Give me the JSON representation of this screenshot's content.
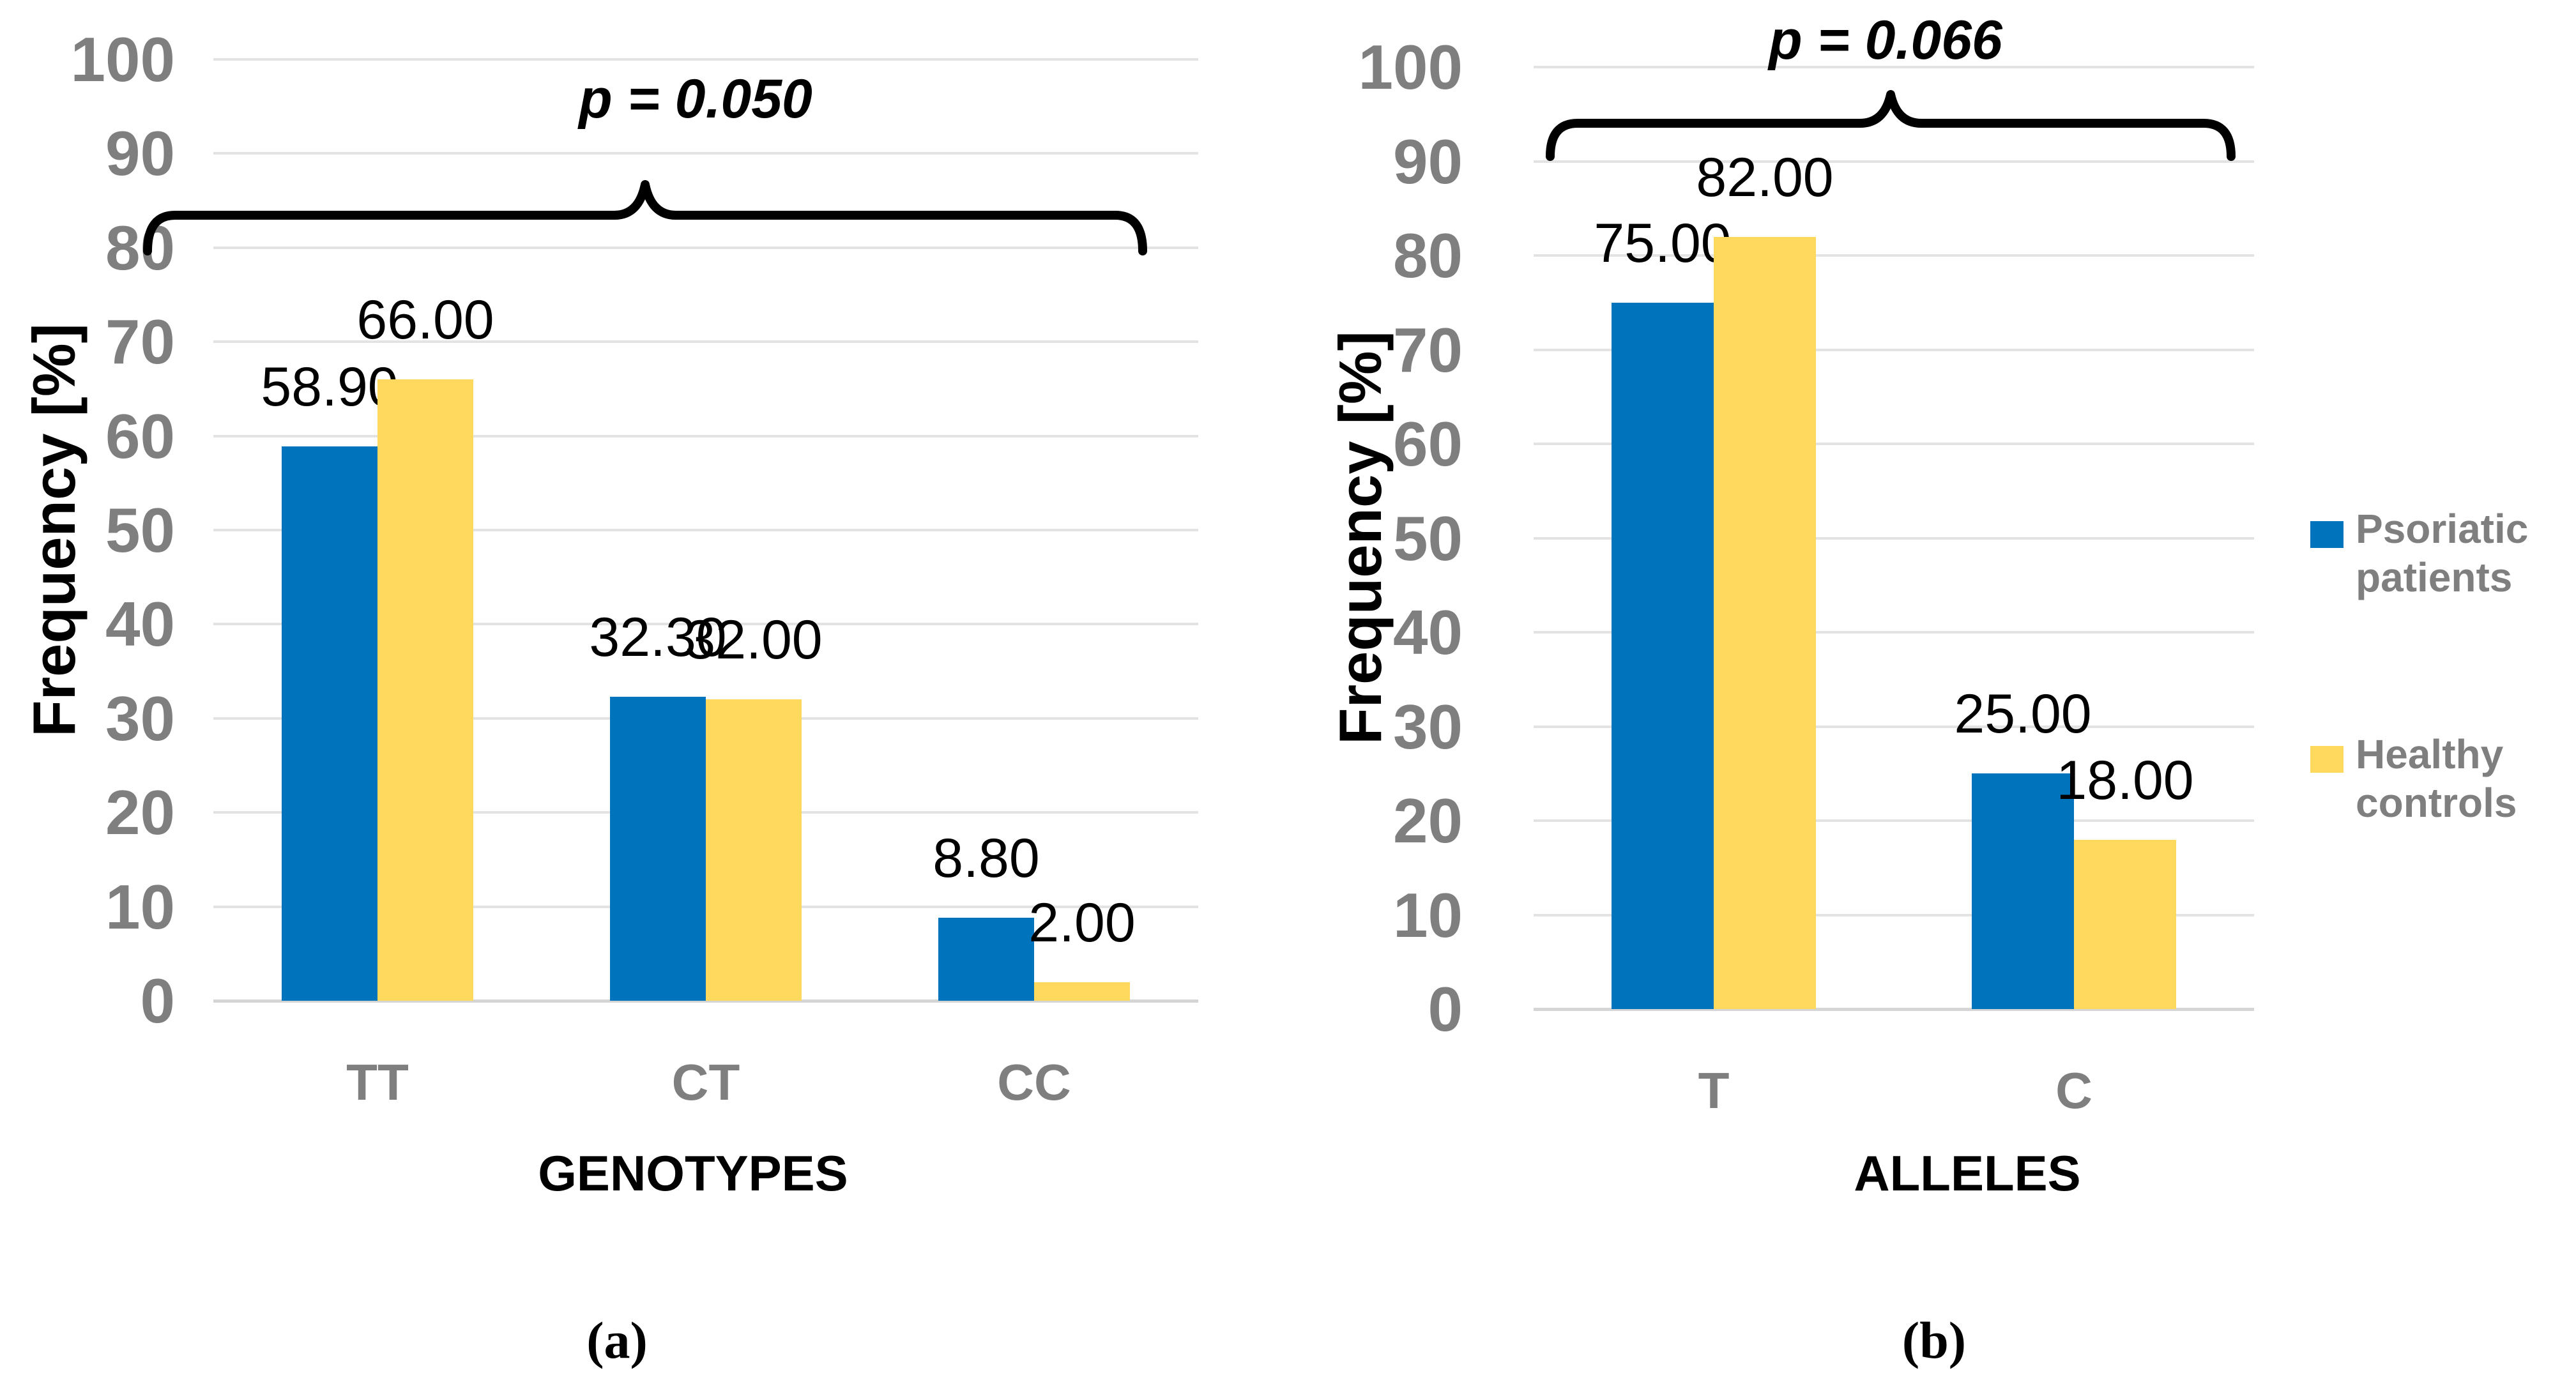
{
  "chart_data": [
    {
      "type": "bar",
      "panel_label": "(a)",
      "annotation": "p = 0.050",
      "xlabel": "GENOTYPES",
      "ylabel": "Frequency [%]",
      "ylim": [
        0,
        100
      ],
      "yticks": [
        0,
        10,
        20,
        30,
        40,
        50,
        60,
        70,
        80,
        90,
        100
      ],
      "grid": "horizontal",
      "legend_position": "right",
      "categories": [
        "TT",
        "CT",
        "CC"
      ],
      "series": [
        {
          "name": "Psoriatic patients",
          "color": "#0073BD",
          "values": [
            58.9,
            32.3,
            8.8
          ],
          "data_labels": [
            "58.90",
            "32.30",
            "8.80"
          ]
        },
        {
          "name": "Healthy controls",
          "color": "#FFD95E",
          "values": [
            66.0,
            32.0,
            2.0
          ],
          "data_labels": [
            "66.00",
            "32.00",
            "2.00"
          ]
        }
      ]
    },
    {
      "type": "bar",
      "panel_label": "(b)",
      "annotation": "p = 0.066",
      "xlabel": "ALLELES",
      "ylabel": "Frequency [%]",
      "ylim": [
        0,
        100
      ],
      "yticks": [
        0,
        10,
        20,
        30,
        40,
        50,
        60,
        70,
        80,
        90,
        100
      ],
      "grid": "horizontal",
      "legend_position": "right",
      "categories": [
        "T",
        "C"
      ],
      "series": [
        {
          "name": "Psoriatic patients",
          "color": "#0073BD",
          "values": [
            75.0,
            25.0
          ],
          "data_labels": [
            "75.00",
            "25.00"
          ]
        },
        {
          "name": "Healthy controls",
          "color": "#FFD95E",
          "values": [
            82.0,
            18.0
          ],
          "data_labels": [
            "82.00",
            "18.00"
          ]
        }
      ]
    }
  ],
  "legend": {
    "items": [
      {
        "label": "Psoriatic patients",
        "color": "#0073BD"
      },
      {
        "label": "Healthy controls",
        "color": "#FFD95E"
      }
    ]
  },
  "colors": {
    "series_blue": "#0073BD",
    "series_yellow": "#FFD95E",
    "gridline": "#E3E3E3",
    "axis_text": "#7F7F7F",
    "label_text": "#000000"
  }
}
